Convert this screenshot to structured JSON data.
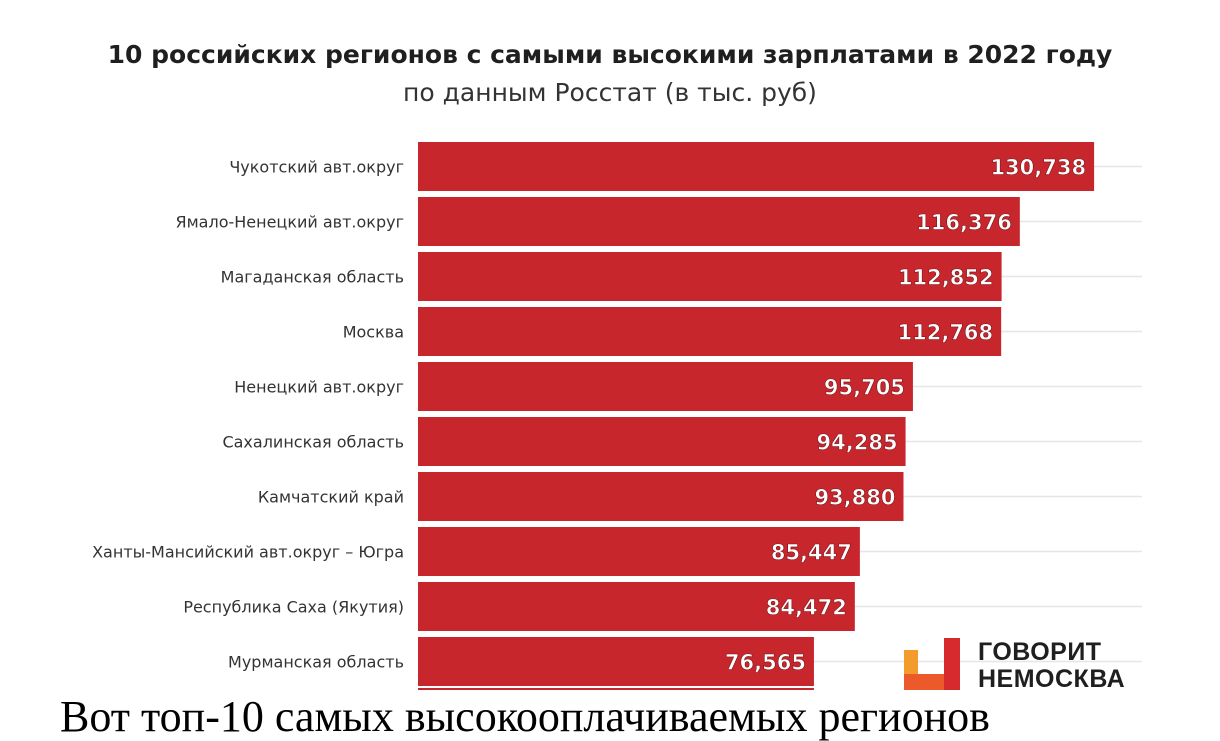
{
  "header": {
    "title": "10 российских регионов с самыми высокими зарплатами в 2022 году",
    "subtitle": "по данным Росстат (в тыс. руб)"
  },
  "chart_data": {
    "type": "bar",
    "orientation": "horizontal",
    "title": "10 российских регионов с самыми высокими зарплатами в 2022 году",
    "subtitle": "по данным Росстат (в тыс. руб)",
    "categories": [
      "Чукотский авт.округ",
      "Ямало-Ненецкий авт.округ",
      "Магаданская область",
      "Москва",
      "Ненецкий авт.округ",
      "Сахалинская область",
      "Камчатский край",
      "Ханты-Мансийский авт.округ – Югра",
      "Республика Саха (Якутия)",
      "Мурманская область"
    ],
    "values": [
      130738,
      116376,
      112852,
      112768,
      95705,
      94285,
      93880,
      85447,
      84472,
      76565
    ],
    "value_labels": [
      "130,738",
      "116,376",
      "112,852",
      "112,768",
      "95,705",
      "94,285",
      "93,880",
      "85,447",
      "84,472",
      "76,565"
    ],
    "xlim": [
      0,
      140000
    ],
    "grid": true,
    "bar_color": "#c8262d"
  },
  "logo": {
    "line1": "ГОВОРИТ",
    "line2": "НЕМОСКВА",
    "colors": [
      "#f39b2b",
      "#ec5a2c",
      "#d72a2e"
    ]
  },
  "bottom_text": "Вот топ-10 самых высокооплачиваемых регионов"
}
